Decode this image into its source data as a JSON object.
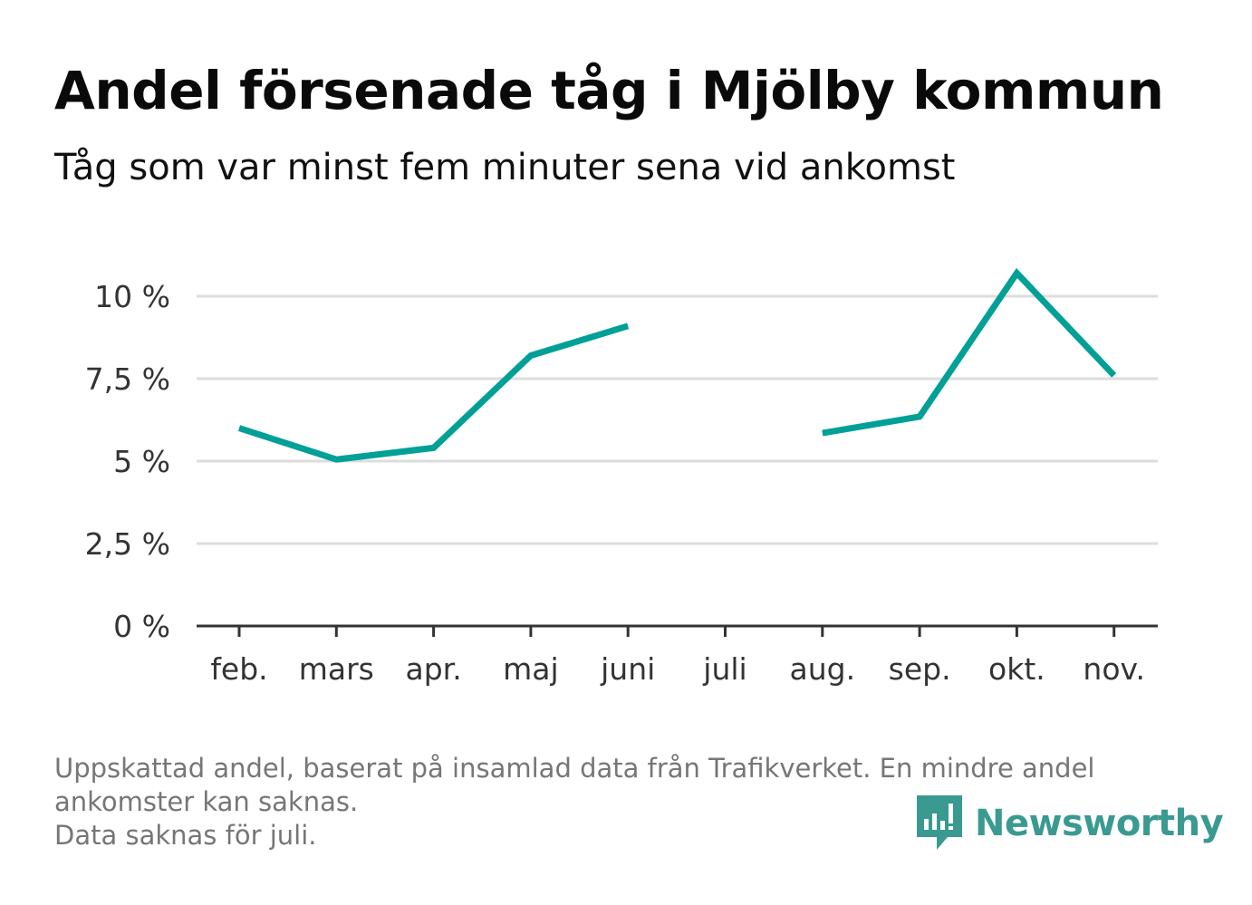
{
  "title": "Andel försenade tåg i Mjölby kommun",
  "subtitle": "Tåg som var minst fem minuter sena vid ankomst",
  "footnote": {
    "line1": "Uppskattad andel, baserat på insamlad data från Trafikverket. En mindre andel",
    "line2": "ankomster kan saknas.",
    "line3": "Data saknas för juli."
  },
  "brand": {
    "name": "Newsworthy",
    "icon": "newsworthy-logo-icon",
    "color": "#3a9a91"
  },
  "chart_data": {
    "type": "line",
    "categories": [
      "feb.",
      "mars",
      "apr.",
      "maj",
      "juni",
      "juli",
      "aug.",
      "sep.",
      "okt.",
      "nov."
    ],
    "series": [
      {
        "values": [
          6.0,
          5.05,
          5.4,
          8.2,
          9.1,
          null,
          5.85,
          6.35,
          10.7,
          7.6
        ],
        "color": "#00a097"
      }
    ],
    "yticks": [
      0,
      2.5,
      5,
      7.5,
      10
    ],
    "ytick_labels": [
      "0 %",
      "2,5 %",
      "5 %",
      "7,5 %",
      "10 %"
    ],
    "ylim": [
      0,
      10.7
    ],
    "grid": true,
    "legend": "none"
  }
}
